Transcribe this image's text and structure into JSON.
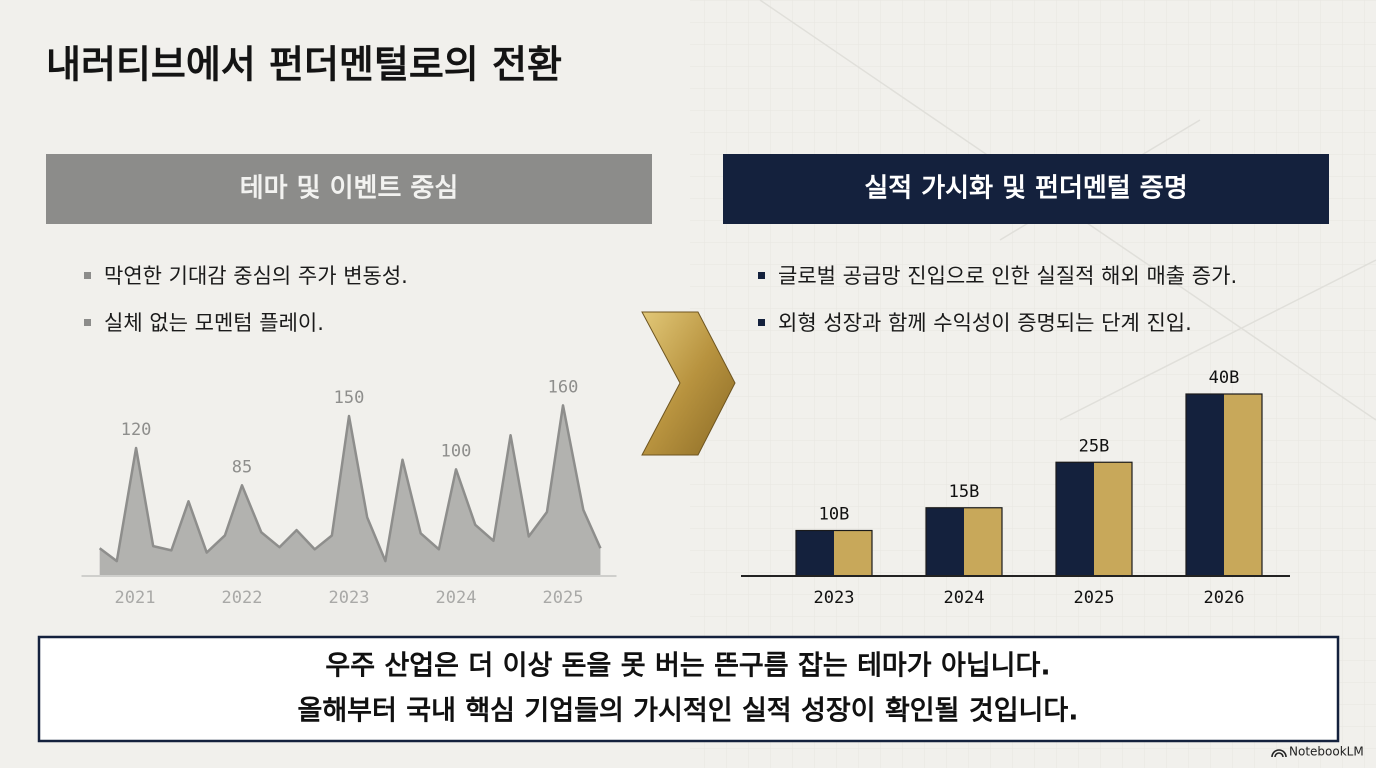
{
  "title": "내러티브에서 펀더멘털로의 전환",
  "left": {
    "header": "테마 및 이벤트 중심",
    "bullets": [
      "막연한 기대감 중심의 주가 변동성.",
      "실체 없는 모멘텀 플레이."
    ]
  },
  "right": {
    "header": "실적 가시화 및 펀더멘털 증명",
    "bullets": [
      "글로벌 공급망 진입으로 인한 실질적 해외 매출 증가.",
      "외형 성장과 함께 수익성이 증명되는 단계 진입."
    ]
  },
  "conclusion": [
    "우주 산업은 더 이상 돈을 못 버는 뜬구름 잡는 테마가 아닙니다.",
    "올해부터 국내 핵심 기업들의 가시적인 실적 성장이 확인될 것입니다."
  ],
  "brand": "NotebookLM",
  "chart_data": [
    {
      "type": "area",
      "x": [
        2020.67,
        2020.83,
        2021.01,
        2021.17,
        2021.34,
        2021.5,
        2021.67,
        2021.84,
        2022.0,
        2022.18,
        2022.35,
        2022.51,
        2022.68,
        2022.84,
        2023.0,
        2023.17,
        2023.34,
        2023.5,
        2023.67,
        2023.84,
        2024.0,
        2024.18,
        2024.35,
        2024.51,
        2024.68,
        2024.85,
        2025.0,
        2025.19,
        2025.35
      ],
      "values": [
        26,
        14,
        120,
        28,
        24,
        70,
        22,
        38,
        85,
        41,
        27,
        43,
        25,
        38,
        150,
        55,
        14,
        109,
        40,
        25,
        100,
        48,
        33,
        132,
        37,
        60,
        160,
        62,
        26
      ],
      "annotations": [
        {
          "x": 2021.01,
          "y": 120
        },
        {
          "x": 2022.0,
          "y": 85
        },
        {
          "x": 2023.0,
          "y": 150
        },
        {
          "x": 2024.0,
          "y": 100
        },
        {
          "x": 2025.0,
          "y": 160
        }
      ],
      "color": "#ababa9",
      "xlim": [
        2020.5,
        2025.5
      ],
      "xticks": [
        2021,
        2022,
        2023,
        2024,
        2025
      ],
      "ylim": [
        0,
        180
      ]
    },
    {
      "type": "bar",
      "categories": [
        "2023",
        "2024",
        "2025",
        "2026"
      ],
      "values": [
        10,
        15,
        25,
        40
      ],
      "value_labels": [
        "10B",
        "15B",
        "25B",
        "40B"
      ],
      "colors": [
        "#14213d",
        "#c8a85a"
      ],
      "ylim": [
        0,
        40
      ]
    }
  ]
}
